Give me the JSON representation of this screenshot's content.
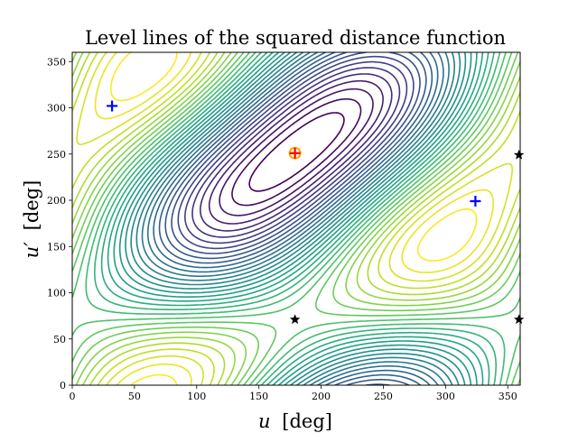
{
  "chart_data": {
    "type": "contour",
    "title": "Level lines of the squared distance function",
    "xlabel": {
      "var": "u",
      "unit": "[deg]"
    },
    "ylabel": {
      "var": "u′",
      "unit": "[deg]"
    },
    "xlim": [
      0,
      360
    ],
    "ylim": [
      0,
      360
    ],
    "xticks": [
      0,
      50,
      100,
      150,
      200,
      250,
      300,
      350
    ],
    "yticks": [
      0,
      50,
      100,
      150,
      200,
      250,
      300,
      350
    ],
    "colormap": "viridis",
    "grid": false,
    "markers": {
      "red_plus": [
        {
          "x": 179,
          "y": 251
        }
      ],
      "orange_circle": [
        {
          "x": 179,
          "y": 251
        }
      ],
      "blue_plus": [
        {
          "x": 32,
          "y": 302
        },
        {
          "x": 324,
          "y": 199
        }
      ],
      "black_star": [
        {
          "x": 179,
          "y": 71
        },
        {
          "x": 359,
          "y": 249
        },
        {
          "x": 359,
          "y": 71
        }
      ]
    },
    "colors": {
      "red_plus": "#ff0000",
      "orange_circle": "#ffa500",
      "blue_plus": "#0000ff",
      "black_star": "#000000"
    }
  }
}
